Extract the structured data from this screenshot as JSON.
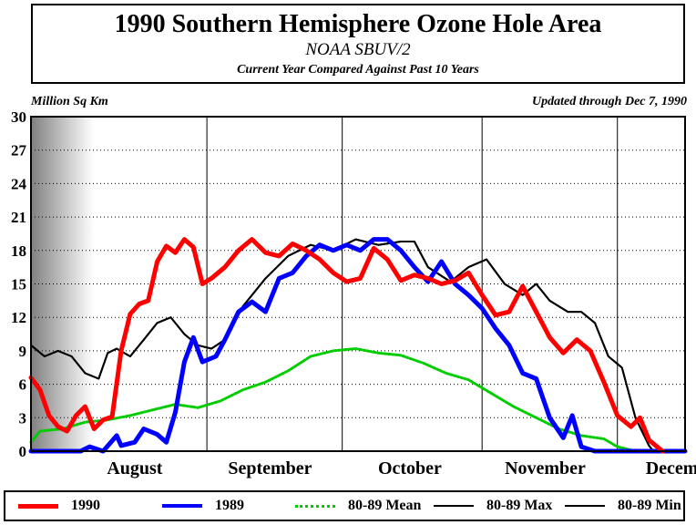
{
  "header": {
    "title": "1990 Southern Hemisphere Ozone Hole Area",
    "subtitle": "NOAA SBUV/2",
    "subtitle2": "Current Year Compared Against Past 10 Years"
  },
  "corner_left": "Million Sq Km",
  "corner_right": "Updated through Dec 7, 1990",
  "chart_data": {
    "type": "line",
    "title": "1990 Southern Hemisphere Ozone Hole Area",
    "ylabel": "Million Sq Km",
    "ylim": [
      0,
      30
    ],
    "yticks": [
      0,
      3,
      6,
      9,
      12,
      15,
      18,
      21,
      24,
      27,
      30
    ],
    "xlim": [
      "1990-07-24",
      "1990-12-16"
    ],
    "month_labels": [
      {
        "label": "August",
        "date": "1990-08-16"
      },
      {
        "label": "September",
        "date": "1990-09-15"
      },
      {
        "label": "October",
        "date": "1990-10-16"
      },
      {
        "label": "November",
        "date": "1990-11-15"
      },
      {
        "label": "December",
        "date": "1990-12-16"
      }
    ],
    "month_boundaries": [
      "1990-09-01",
      "1990-10-01",
      "1990-11-01",
      "1990-12-01"
    ],
    "grid": "horizontal dotted at each y tick; vertical solid at month boundaries",
    "shaded_region": "left edge to early August (gradient gray)",
    "legend_position": "bottom",
    "series": [
      {
        "name": "1990",
        "color": "#ff0000",
        "style": "thick-solid",
        "points": [
          [
            "1990-07-24",
            6.6
          ],
          [
            "1990-07-26",
            5.5
          ],
          [
            "1990-07-28",
            3.2
          ],
          [
            "1990-07-30",
            2.2
          ],
          [
            "1990-08-01",
            1.8
          ],
          [
            "1990-08-03",
            3.2
          ],
          [
            "1990-08-05",
            4.0
          ],
          [
            "1990-08-07",
            2.0
          ],
          [
            "1990-08-09",
            2.8
          ],
          [
            "1990-08-11",
            3.1
          ],
          [
            "1990-08-13",
            9.0
          ],
          [
            "1990-08-15",
            12.3
          ],
          [
            "1990-08-17",
            13.2
          ],
          [
            "1990-08-19",
            13.5
          ],
          [
            "1990-08-21",
            17.0
          ],
          [
            "1990-08-23",
            18.4
          ],
          [
            "1990-08-25",
            17.8
          ],
          [
            "1990-08-27",
            19.0
          ],
          [
            "1990-08-29",
            18.3
          ],
          [
            "1990-08-31",
            15.0
          ],
          [
            "1990-09-02",
            15.5
          ],
          [
            "1990-09-05",
            16.5
          ],
          [
            "1990-09-08",
            18.0
          ],
          [
            "1990-09-11",
            19.0
          ],
          [
            "1990-09-14",
            17.8
          ],
          [
            "1990-09-17",
            17.5
          ],
          [
            "1990-09-20",
            18.6
          ],
          [
            "1990-09-23",
            18.0
          ],
          [
            "1990-09-26",
            17.2
          ],
          [
            "1990-09-29",
            16.0
          ],
          [
            "1990-10-02",
            15.2
          ],
          [
            "1990-10-05",
            15.5
          ],
          [
            "1990-10-08",
            18.2
          ],
          [
            "1990-10-11",
            17.2
          ],
          [
            "1990-10-14",
            15.3
          ],
          [
            "1990-10-17",
            15.8
          ],
          [
            "1990-10-20",
            15.5
          ],
          [
            "1990-10-23",
            15.0
          ],
          [
            "1990-10-26",
            15.3
          ],
          [
            "1990-10-29",
            16.0
          ],
          [
            "1990-11-01",
            14.0
          ],
          [
            "1990-11-04",
            12.2
          ],
          [
            "1990-11-07",
            12.5
          ],
          [
            "1990-11-10",
            14.8
          ],
          [
            "1990-11-13",
            12.5
          ],
          [
            "1990-11-16",
            10.2
          ],
          [
            "1990-11-19",
            8.8
          ],
          [
            "1990-11-22",
            10.0
          ],
          [
            "1990-11-25",
            9.0
          ],
          [
            "1990-11-28",
            6.2
          ],
          [
            "1990-12-01",
            3.2
          ],
          [
            "1990-12-04",
            2.2
          ],
          [
            "1990-12-06",
            3.0
          ],
          [
            "1990-12-08",
            1.0
          ],
          [
            "1990-12-11",
            0.0
          ]
        ]
      },
      {
        "name": "1989",
        "color": "#0000ff",
        "style": "thick-solid",
        "points": [
          [
            "1990-07-24",
            0.0
          ],
          [
            "1990-08-04",
            0.0
          ],
          [
            "1990-08-06",
            0.4
          ],
          [
            "1990-08-09",
            0.0
          ],
          [
            "1990-08-12",
            1.4
          ],
          [
            "1990-08-13",
            0.5
          ],
          [
            "1990-08-16",
            0.8
          ],
          [
            "1990-08-18",
            2.0
          ],
          [
            "1990-08-21",
            1.5
          ],
          [
            "1990-08-23",
            0.8
          ],
          [
            "1990-08-25",
            3.5
          ],
          [
            "1990-08-27",
            8.0
          ],
          [
            "1990-08-29",
            10.2
          ],
          [
            "1990-08-31",
            8.0
          ],
          [
            "1990-09-03",
            8.5
          ],
          [
            "1990-09-05",
            10.0
          ],
          [
            "1990-09-08",
            12.5
          ],
          [
            "1990-09-11",
            13.4
          ],
          [
            "1990-09-14",
            12.5
          ],
          [
            "1990-09-17",
            15.5
          ],
          [
            "1990-09-20",
            16.0
          ],
          [
            "1990-09-23",
            17.5
          ],
          [
            "1990-09-26",
            18.5
          ],
          [
            "1990-09-29",
            18.0
          ],
          [
            "1990-10-02",
            18.5
          ],
          [
            "1990-10-05",
            18.0
          ],
          [
            "1990-10-08",
            19.0
          ],
          [
            "1990-10-11",
            19.0
          ],
          [
            "1990-10-14",
            18.0
          ],
          [
            "1990-10-17",
            16.5
          ],
          [
            "1990-10-20",
            15.2
          ],
          [
            "1990-10-23",
            17.0
          ],
          [
            "1990-10-26",
            15.0
          ],
          [
            "1990-10-29",
            14.0
          ],
          [
            "1990-11-01",
            12.8
          ],
          [
            "1990-11-04",
            11.0
          ],
          [
            "1990-11-07",
            9.5
          ],
          [
            "1990-11-10",
            7.0
          ],
          [
            "1990-11-13",
            6.5
          ],
          [
            "1990-11-16",
            3.0
          ],
          [
            "1990-11-19",
            1.2
          ],
          [
            "1990-11-21",
            3.2
          ],
          [
            "1990-11-23",
            0.4
          ],
          [
            "1990-11-26",
            0.0
          ],
          [
            "1990-12-16",
            0.0
          ]
        ]
      },
      {
        "name": "80-89 Mean",
        "color": "#00cc00",
        "style": "dotted",
        "points": [
          [
            "1990-07-24",
            0.8
          ],
          [
            "1990-07-26",
            1.8
          ],
          [
            "1990-07-31",
            2.0
          ],
          [
            "1990-08-05",
            2.6
          ],
          [
            "1990-08-10",
            2.8
          ],
          [
            "1990-08-15",
            3.2
          ],
          [
            "1990-08-20",
            3.7
          ],
          [
            "1990-08-25",
            4.2
          ],
          [
            "1990-08-30",
            3.9
          ],
          [
            "1990-09-04",
            4.5
          ],
          [
            "1990-09-09",
            5.5
          ],
          [
            "1990-09-14",
            6.2
          ],
          [
            "1990-09-19",
            7.2
          ],
          [
            "1990-09-24",
            8.5
          ],
          [
            "1990-09-29",
            9.0
          ],
          [
            "1990-10-04",
            9.2
          ],
          [
            "1990-10-09",
            8.8
          ],
          [
            "1990-10-14",
            8.6
          ],
          [
            "1990-10-19",
            7.9
          ],
          [
            "1990-10-24",
            7.0
          ],
          [
            "1990-10-29",
            6.4
          ],
          [
            "1990-11-03",
            5.2
          ],
          [
            "1990-11-08",
            4.0
          ],
          [
            "1990-11-13",
            3.0
          ],
          [
            "1990-11-18",
            2.0
          ],
          [
            "1990-11-23",
            1.4
          ],
          [
            "1990-11-28",
            1.1
          ],
          [
            "1990-12-01",
            0.4
          ],
          [
            "1990-12-04",
            0.1
          ],
          [
            "1990-12-16",
            0.0
          ]
        ]
      },
      {
        "name": "80-89 Max",
        "color": "#000000",
        "style": "thin-solid",
        "points": [
          [
            "1990-07-24",
            9.5
          ],
          [
            "1990-07-27",
            8.5
          ],
          [
            "1990-07-30",
            9.0
          ],
          [
            "1990-08-02",
            8.5
          ],
          [
            "1990-08-05",
            7.0
          ],
          [
            "1990-08-08",
            6.5
          ],
          [
            "1990-08-10",
            8.8
          ],
          [
            "1990-08-12",
            9.2
          ],
          [
            "1990-08-15",
            8.5
          ],
          [
            "1990-08-18",
            10.0
          ],
          [
            "1990-08-21",
            11.5
          ],
          [
            "1990-08-24",
            12.0
          ],
          [
            "1990-08-27",
            10.5
          ],
          [
            "1990-08-30",
            9.5
          ],
          [
            "1990-09-02",
            9.2
          ],
          [
            "1990-09-05",
            10.0
          ],
          [
            "1990-09-09",
            13.0
          ],
          [
            "1990-09-14",
            15.5
          ],
          [
            "1990-09-19",
            17.5
          ],
          [
            "1990-09-24",
            18.5
          ],
          [
            "1990-09-29",
            18.0
          ],
          [
            "1990-10-04",
            19.0
          ],
          [
            "1990-10-09",
            18.5
          ],
          [
            "1990-10-14",
            18.8
          ],
          [
            "1990-10-17",
            18.8
          ],
          [
            "1990-10-20",
            16.5
          ],
          [
            "1990-10-25",
            15.2
          ],
          [
            "1990-10-29",
            16.5
          ],
          [
            "1990-11-02",
            17.2
          ],
          [
            "1990-11-06",
            15.0
          ],
          [
            "1990-11-10",
            14.0
          ],
          [
            "1990-11-13",
            15.0
          ],
          [
            "1990-11-16",
            13.5
          ],
          [
            "1990-11-20",
            12.5
          ],
          [
            "1990-11-23",
            12.5
          ],
          [
            "1990-11-26",
            11.5
          ],
          [
            "1990-11-29",
            8.5
          ],
          [
            "1990-12-02",
            7.5
          ],
          [
            "1990-12-05",
            3.0
          ],
          [
            "1990-12-08",
            0.5
          ],
          [
            "1990-12-09",
            0.0
          ]
        ]
      },
      {
        "name": "80-89 Min",
        "color": "#000000",
        "style": "thin-solid",
        "points": [
          [
            "1990-07-24",
            9.5
          ],
          [
            "1990-07-27",
            8.5
          ],
          [
            "1990-07-30",
            9.0
          ],
          [
            "1990-08-02",
            8.5
          ],
          [
            "1990-08-05",
            7.0
          ],
          [
            "1990-08-08",
            6.5
          ],
          [
            "1990-08-10",
            8.8
          ],
          [
            "1990-08-12",
            9.2
          ],
          [
            "1990-08-15",
            8.5
          ],
          [
            "1990-08-18",
            10.0
          ],
          [
            "1990-08-21",
            11.5
          ],
          [
            "1990-08-24",
            12.0
          ],
          [
            "1990-08-27",
            10.5
          ],
          [
            "1990-08-30",
            9.5
          ],
          [
            "1990-09-02",
            9.2
          ],
          [
            "1990-09-05",
            10.0
          ],
          [
            "1990-09-09",
            13.0
          ],
          [
            "1990-09-14",
            15.5
          ],
          [
            "1990-09-19",
            17.5
          ],
          [
            "1990-09-24",
            18.5
          ],
          [
            "1990-09-29",
            18.0
          ],
          [
            "1990-10-04",
            19.0
          ],
          [
            "1990-10-09",
            18.5
          ],
          [
            "1990-10-14",
            18.8
          ],
          [
            "1990-10-17",
            18.8
          ],
          [
            "1990-10-20",
            16.5
          ],
          [
            "1990-10-25",
            15.2
          ],
          [
            "1990-10-29",
            16.5
          ],
          [
            "1990-11-02",
            17.2
          ],
          [
            "1990-11-06",
            15.0
          ],
          [
            "1990-11-10",
            14.0
          ],
          [
            "1990-11-13",
            15.0
          ],
          [
            "1990-11-16",
            13.5
          ],
          [
            "1990-11-20",
            12.5
          ],
          [
            "1990-11-23",
            12.5
          ],
          [
            "1990-11-26",
            11.5
          ],
          [
            "1990-11-29",
            8.5
          ],
          [
            "1990-12-02",
            7.5
          ],
          [
            "1990-12-05",
            3.0
          ],
          [
            "1990-12-08",
            0.5
          ],
          [
            "1990-12-09",
            0.0
          ]
        ]
      }
    ]
  },
  "legend": [
    {
      "label": "1990",
      "color": "#ff0000",
      "style": "thick-solid"
    },
    {
      "label": "1989",
      "color": "#0000ff",
      "style": "thick-solid"
    },
    {
      "label": "80-89 Mean",
      "color": "#00cc00",
      "style": "dotted"
    },
    {
      "label": "80-89 Max",
      "color": "#000000",
      "style": "thin-solid"
    },
    {
      "label": "80-89 Min",
      "color": "#000000",
      "style": "thin-solid"
    }
  ]
}
